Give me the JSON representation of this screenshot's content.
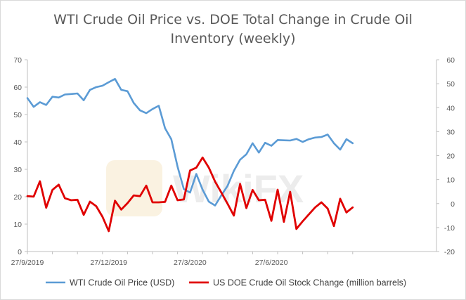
{
  "chart_data": {
    "type": "line",
    "title_line1": "WTI Crude Oil Price vs. DOE Total Change in Crude Oil",
    "title_line2": "Inventory (weekly)",
    "watermark_text": "WikiFX",
    "x_tick_labels": [
      "27/9/2019",
      "27/12/2019",
      "27/3/2020",
      "27/6/2020"
    ],
    "x_tick_weeks": [
      0,
      13,
      26,
      39
    ],
    "y_left": {
      "min": 0,
      "max": 70,
      "step": 10,
      "ticks": [
        "0",
        "10",
        "20",
        "30",
        "40",
        "50",
        "60",
        "70"
      ]
    },
    "y_right": {
      "min": -20,
      "max": 60,
      "step": 10,
      "ticks": [
        "-20",
        "-10",
        "0",
        "10",
        "20",
        "30",
        "40",
        "50",
        "60"
      ]
    },
    "grid": false,
    "legend_position": "bottom",
    "series": [
      {
        "name": "WTI Crude Oil Price (USD)",
        "axis": "left",
        "color": "#5b9bd5",
        "week_start": 0,
        "values": [
          56,
          52.8,
          54.5,
          53.5,
          56.5,
          56.2,
          57.3,
          57.5,
          57.7,
          55.2,
          59,
          60,
          60.5,
          61.8,
          63,
          59,
          58.5,
          54.2,
          51.5,
          50.5,
          52,
          53.2,
          45,
          41,
          31,
          22.8,
          21.5,
          28.3,
          22.6,
          18.2,
          16.8,
          20.5,
          24,
          29.4,
          33.5,
          35.5,
          39.5,
          36.1,
          39.7,
          38.6,
          40.7,
          40.6,
          40.5,
          41.1,
          40,
          41,
          41.6,
          41.8,
          42.7,
          39.5,
          37.2,
          41,
          39.5
        ]
      },
      {
        "name": "US DOE Crude Oil Stock Change (million barrels)",
        "axis": "right",
        "color": "#e00000",
        "week_start": 0,
        "values": [
          3.1,
          2.9,
          9.3,
          -1.7,
          5.7,
          7.9,
          2.2,
          1.4,
          1.6,
          -4.7,
          0.8,
          -1.1,
          -5.5,
          -11.5,
          1.2,
          -2.5,
          0.2,
          3.4,
          3.1,
          7.5,
          0.5,
          0.5,
          0.7,
          7.5,
          1.4,
          1.7,
          13.8,
          15,
          19.2,
          15,
          9.2,
          4.6,
          -0.1,
          -5,
          8.2,
          -1.9,
          5.7,
          1.4,
          1.6,
          -7.2,
          5.8,
          -7.6,
          4.9,
          -10.6,
          -7.4,
          -4.5,
          -1.6,
          0.5,
          -2.1,
          -9.4,
          2,
          -3.7,
          -1.6
        ]
      }
    ]
  }
}
